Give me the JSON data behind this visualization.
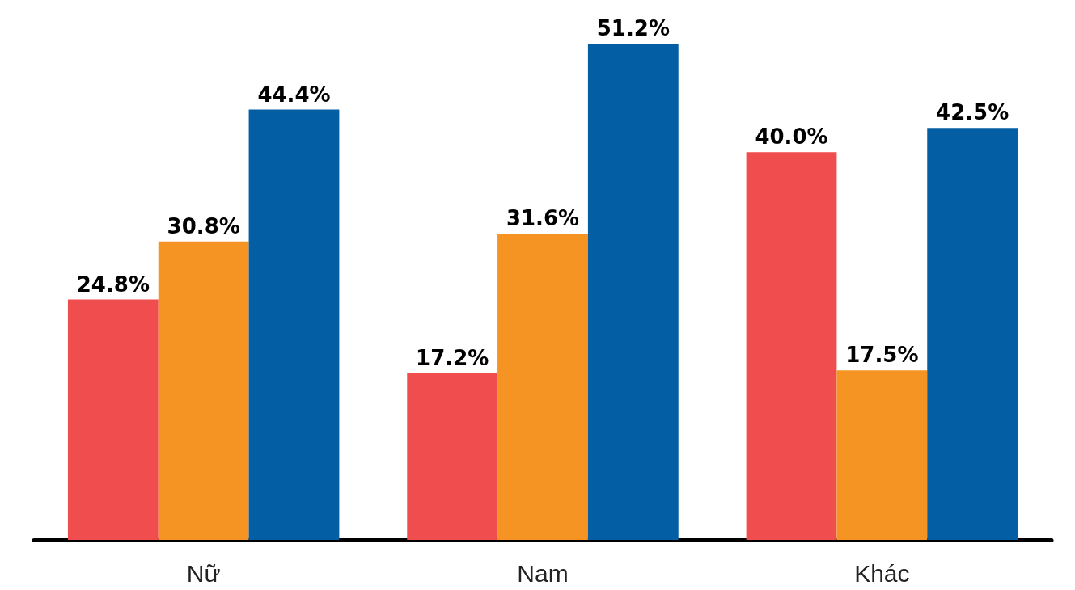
{
  "chart_data": {
    "type": "bar",
    "categories": [
      "Nữ",
      "Nam",
      "Khác"
    ],
    "series": [
      {
        "color": "#f04e4e",
        "values": [
          24.8,
          17.2,
          40.0
        ],
        "value_labels": [
          "24.8%",
          "17.2%",
          "40.0%"
        ]
      },
      {
        "color": "#f59423",
        "values": [
          30.8,
          31.6,
          17.5
        ],
        "value_labels": [
          "30.8%",
          "31.6%",
          "17.5%"
        ]
      },
      {
        "color": "#045ea3",
        "values": [
          44.4,
          51.2,
          42.5
        ],
        "value_labels": [
          "44.4%",
          "51.2%",
          "42.5%"
        ]
      }
    ]
  }
}
